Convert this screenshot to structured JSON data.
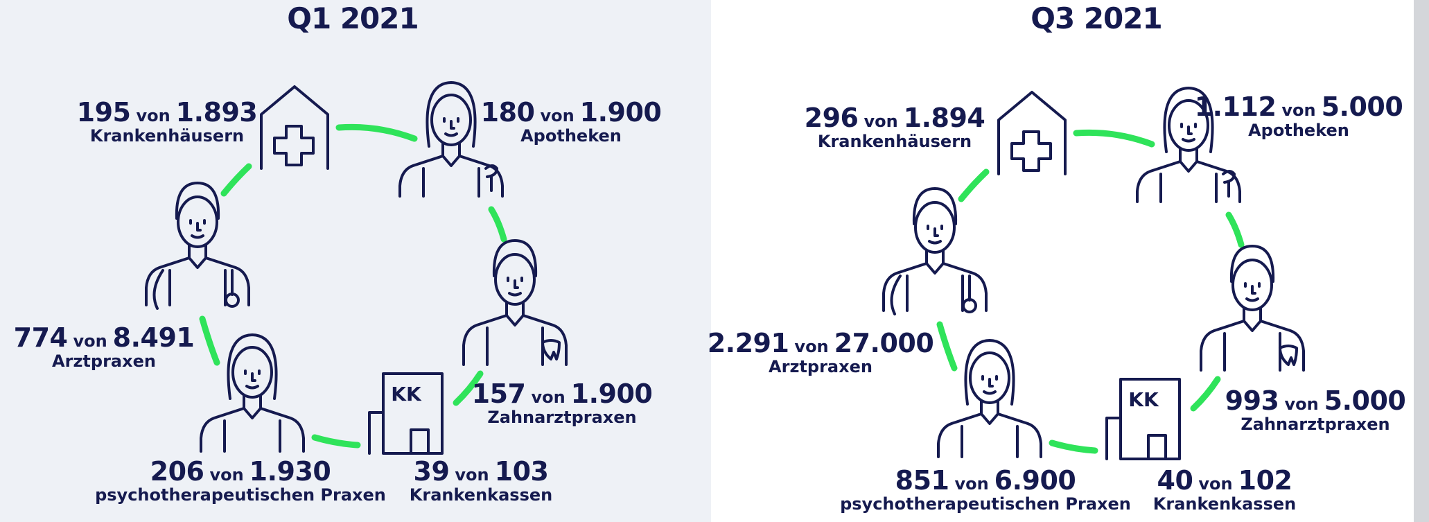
{
  "panels": [
    {
      "title": "Q1 2021",
      "items": [
        {
          "count": "195",
          "sep": "von",
          "total": "1.893",
          "label": "Krankenhäusern"
        },
        {
          "count": "180",
          "sep": "von",
          "total": "1.900",
          "label": "Apotheken"
        },
        {
          "count": "774",
          "sep": "von",
          "total": "8.491",
          "label": "Arztpraxen"
        },
        {
          "count": "157",
          "sep": "von",
          "total": "1.900",
          "label": "Zahnarztpraxen"
        },
        {
          "count": "206",
          "sep": "von",
          "total": "1.930",
          "label": "psychotherapeutischen Praxen"
        },
        {
          "count": "39",
          "sep": "von",
          "total": "103",
          "label": "Krankenkassen"
        }
      ]
    },
    {
      "title": "Q3 2021",
      "items": [
        {
          "count": "296",
          "sep": "von",
          "total": "1.894",
          "label": "Krankenhäusern"
        },
        {
          "count": "1.112",
          "sep": "von",
          "total": "5.000",
          "label": "Apotheken"
        },
        {
          "count": "2.291",
          "sep": "von",
          "total": "27.000",
          "label": "Arztpraxen"
        },
        {
          "count": "993",
          "sep": "von",
          "total": "5.000",
          "label": "Zahnarztpraxen"
        },
        {
          "count": "851",
          "sep": "von",
          "total": "6.900",
          "label": "psychotherapeutischen Praxen"
        },
        {
          "count": "40",
          "sep": "von",
          "total": "102",
          "label": "Krankenkassen"
        }
      ]
    }
  ]
}
